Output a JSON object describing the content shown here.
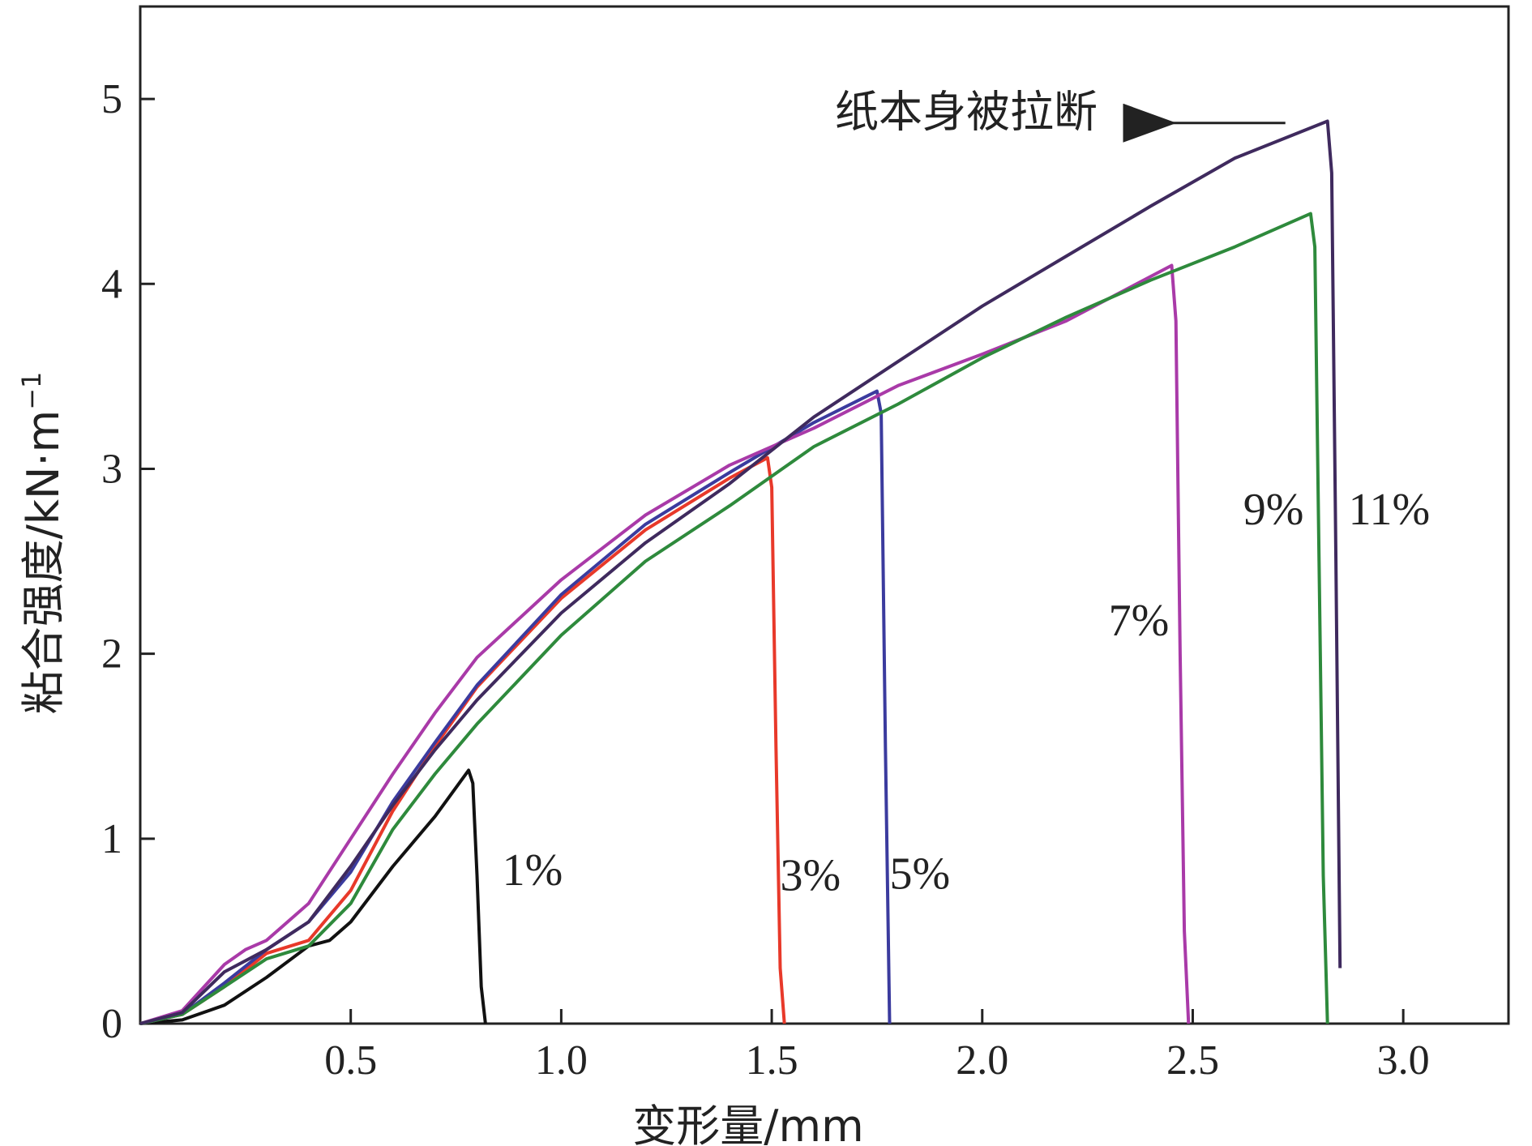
{
  "chart_data": {
    "type": "line",
    "xlabel": "变形量/mm",
    "ylabel": "粘合强度/kN·m",
    "ylabel_superscript": "−1",
    "xlim": [
      0,
      3.25
    ],
    "ylim": [
      0,
      5.5
    ],
    "xticks": [
      0.5,
      1.0,
      1.5,
      2.0,
      2.5,
      3.0
    ],
    "xtick_labels": [
      "0.5",
      "1.0",
      "1.5",
      "2.0",
      "2.5",
      "3.0"
    ],
    "yticks": [
      0,
      1,
      2,
      3,
      4,
      5
    ],
    "ytick_labels": [
      "0",
      "1",
      "2",
      "3",
      "4",
      "5"
    ],
    "grid": false,
    "series": [
      {
        "name": "1%",
        "color": "#111111",
        "points": [
          [
            0,
            0
          ],
          [
            0.1,
            0.02
          ],
          [
            0.2,
            0.1
          ],
          [
            0.3,
            0.25
          ],
          [
            0.4,
            0.42
          ],
          [
            0.45,
            0.45
          ],
          [
            0.5,
            0.55
          ],
          [
            0.6,
            0.85
          ],
          [
            0.7,
            1.12
          ],
          [
            0.78,
            1.37
          ],
          [
            0.79,
            1.3
          ],
          [
            0.8,
            0.8
          ],
          [
            0.81,
            0.2
          ],
          [
            0.82,
            0
          ]
        ]
      },
      {
        "name": "3%",
        "color": "#e8392a",
        "points": [
          [
            0,
            0
          ],
          [
            0.1,
            0.05
          ],
          [
            0.2,
            0.2
          ],
          [
            0.3,
            0.38
          ],
          [
            0.4,
            0.45
          ],
          [
            0.5,
            0.72
          ],
          [
            0.6,
            1.15
          ],
          [
            0.7,
            1.5
          ],
          [
            0.8,
            1.82
          ],
          [
            1.0,
            2.3
          ],
          [
            1.2,
            2.67
          ],
          [
            1.4,
            2.95
          ],
          [
            1.49,
            3.06
          ],
          [
            1.5,
            2.9
          ],
          [
            1.51,
            1.5
          ],
          [
            1.52,
            0.3
          ],
          [
            1.53,
            0
          ]
        ]
      },
      {
        "name": "5%",
        "color": "#3b3b9e",
        "points": [
          [
            0,
            0
          ],
          [
            0.1,
            0.05
          ],
          [
            0.2,
            0.22
          ],
          [
            0.3,
            0.4
          ],
          [
            0.4,
            0.55
          ],
          [
            0.5,
            0.82
          ],
          [
            0.6,
            1.2
          ],
          [
            0.7,
            1.52
          ],
          [
            0.8,
            1.83
          ],
          [
            1.0,
            2.32
          ],
          [
            1.2,
            2.7
          ],
          [
            1.4,
            2.98
          ],
          [
            1.6,
            3.25
          ],
          [
            1.75,
            3.42
          ],
          [
            1.76,
            3.3
          ],
          [
            1.77,
            1.5
          ],
          [
            1.78,
            0
          ]
        ]
      },
      {
        "name": "7%",
        "color": "#a93aa8",
        "points": [
          [
            0,
            0
          ],
          [
            0.1,
            0.07
          ],
          [
            0.2,
            0.32
          ],
          [
            0.25,
            0.4
          ],
          [
            0.3,
            0.45
          ],
          [
            0.4,
            0.65
          ],
          [
            0.5,
            1.0
          ],
          [
            0.6,
            1.35
          ],
          [
            0.7,
            1.68
          ],
          [
            0.8,
            1.98
          ],
          [
            1.0,
            2.4
          ],
          [
            1.2,
            2.75
          ],
          [
            1.4,
            3.02
          ],
          [
            1.6,
            3.22
          ],
          [
            1.8,
            3.45
          ],
          [
            2.0,
            3.62
          ],
          [
            2.2,
            3.8
          ],
          [
            2.45,
            4.1
          ],
          [
            2.46,
            3.8
          ],
          [
            2.47,
            2.0
          ],
          [
            2.48,
            0.5
          ],
          [
            2.49,
            0
          ]
        ]
      },
      {
        "name": "9%",
        "color": "#2e8a3c",
        "points": [
          [
            0,
            0
          ],
          [
            0.1,
            0.05
          ],
          [
            0.2,
            0.2
          ],
          [
            0.3,
            0.35
          ],
          [
            0.4,
            0.42
          ],
          [
            0.5,
            0.65
          ],
          [
            0.6,
            1.05
          ],
          [
            0.7,
            1.35
          ],
          [
            0.8,
            1.62
          ],
          [
            1.0,
            2.1
          ],
          [
            1.2,
            2.5
          ],
          [
            1.4,
            2.8
          ],
          [
            1.6,
            3.12
          ],
          [
            1.8,
            3.35
          ],
          [
            2.0,
            3.6
          ],
          [
            2.2,
            3.82
          ],
          [
            2.4,
            4.02
          ],
          [
            2.6,
            4.2
          ],
          [
            2.78,
            4.38
          ],
          [
            2.79,
            4.2
          ],
          [
            2.8,
            2.5
          ],
          [
            2.81,
            0.8
          ],
          [
            2.82,
            0
          ]
        ]
      },
      {
        "name": "11%",
        "color": "#3f2a5e",
        "points": [
          [
            0,
            0
          ],
          [
            0.1,
            0.06
          ],
          [
            0.2,
            0.28
          ],
          [
            0.3,
            0.4
          ],
          [
            0.4,
            0.55
          ],
          [
            0.5,
            0.85
          ],
          [
            0.6,
            1.18
          ],
          [
            0.7,
            1.48
          ],
          [
            0.8,
            1.75
          ],
          [
            1.0,
            2.22
          ],
          [
            1.2,
            2.6
          ],
          [
            1.4,
            2.92
          ],
          [
            1.6,
            3.28
          ],
          [
            1.8,
            3.58
          ],
          [
            2.0,
            3.88
          ],
          [
            2.2,
            4.15
          ],
          [
            2.4,
            4.42
          ],
          [
            2.6,
            4.68
          ],
          [
            2.82,
            4.88
          ],
          [
            2.83,
            4.6
          ],
          [
            2.84,
            2.5
          ],
          [
            2.85,
            0.3
          ]
        ]
      }
    ],
    "series_labels": [
      {
        "text": "1%",
        "x": 0.86,
        "y": 0.75
      },
      {
        "text": "3%",
        "x": 1.52,
        "y": 0.72
      },
      {
        "text": "5%",
        "x": 1.78,
        "y": 0.73
      },
      {
        "text": "7%",
        "x": 2.3,
        "y": 2.1
      },
      {
        "text": "9%",
        "x": 2.62,
        "y": 2.7
      },
      {
        "text": "11%",
        "x": 2.87,
        "y": 2.7
      }
    ],
    "annotation": {
      "text": "纸本身被拉断",
      "label_x": 1.65,
      "label_y": 4.85,
      "arrow_from": [
        2.72,
        4.87
      ],
      "arrow_to": [
        2.45,
        4.87
      ]
    }
  }
}
